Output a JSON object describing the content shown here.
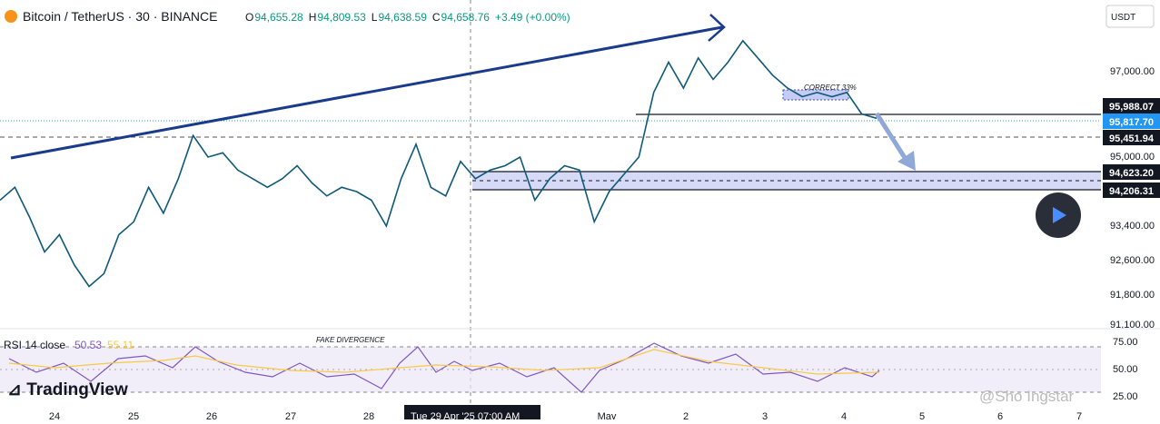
{
  "header": {
    "symbol": "Bitcoin / TetherUS · 30 · BINANCE",
    "ohlc": [
      {
        "label": "O",
        "value": "94,655.28"
      },
      {
        "label": "H",
        "value": "94,809.53"
      },
      {
        "label": "L",
        "value": "94,638.59"
      },
      {
        "label": "C",
        "value": "94,658.76"
      }
    ],
    "change": "+3.49 (+0.00%)"
  },
  "currency_button": "USDT",
  "price_axis": [
    "97,000.00",
    "95,000.00",
    "93,400.00",
    "92,600.00",
    "91,800.00",
    "91,100.00"
  ],
  "price_tags": [
    "95,988.07",
    "95,817.70",
    "95,451.94",
    "94,623.20",
    "94,206.31"
  ],
  "closes": [
    94000,
    94300,
    93600,
    92800,
    93200,
    92500,
    92000,
    92300,
    93200,
    93500,
    94300,
    93700,
    94500,
    95500,
    95000,
    95100,
    94700,
    94500,
    94300,
    94500,
    94800,
    94400,
    94100,
    94300,
    94200,
    94000,
    93400,
    94500,
    95300,
    94300,
    94100,
    94900,
    94500,
    94700,
    94800,
    95000,
    94000,
    94500,
    94800,
    94700,
    93500,
    94200,
    94600,
    95000,
    96500,
    97200,
    96600,
    97300,
    96800,
    97200,
    97700,
    97300,
    96900,
    96600,
    96400,
    96500,
    96400,
    96500,
    96000,
    95900
  ],
  "annotations": {
    "correct": "CORRECT 33%",
    "divergence": "FAKE DIVERGENCE"
  },
  "rsi": {
    "label": "RSI 14 close",
    "value": "50.53",
    "ma": "55.11",
    "axis": [
      "75.00",
      "50.00",
      "25.00"
    ]
  },
  "time_axis": [
    "24",
    "25",
    "26",
    "27",
    "28",
    "May",
    "2",
    "3",
    "4",
    "5",
    "6",
    "7"
  ],
  "crosshair_time": "Tue 29 Apr '25   07:00 AM",
  "logo": "TradingView",
  "watermark": "@Sho Ingstar"
}
